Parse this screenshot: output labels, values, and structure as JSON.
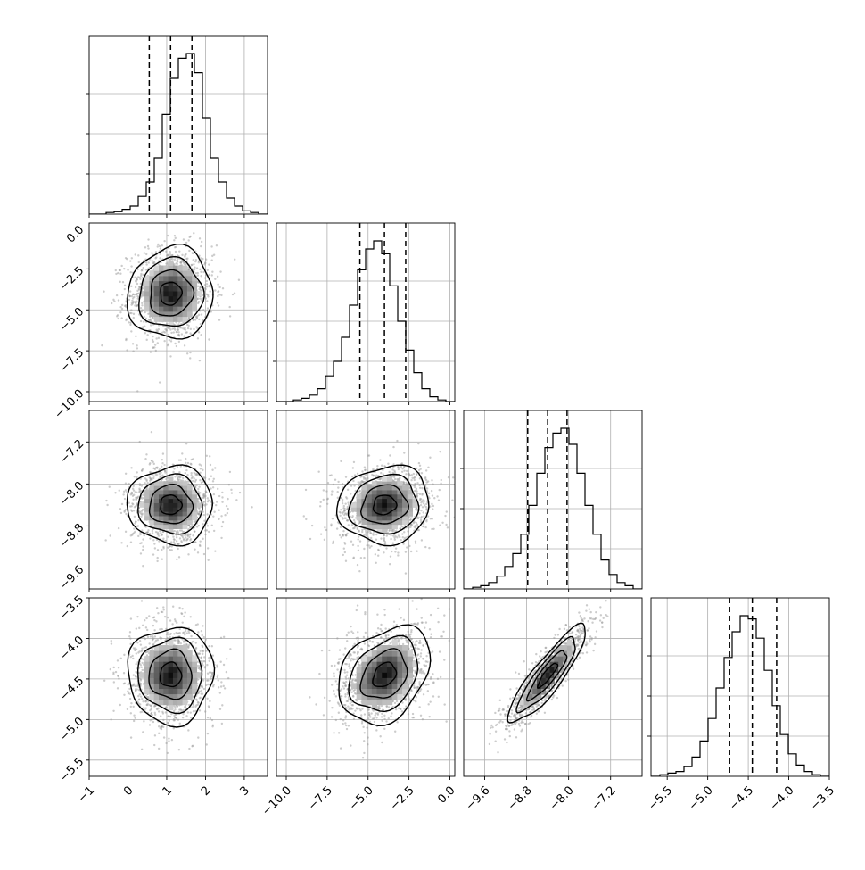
{
  "chart_data": {
    "type": "corner",
    "grid": true,
    "parameters": [
      {
        "range": [
          -1,
          3.6
        ],
        "ticks": [
          -1,
          0,
          1,
          2,
          3
        ],
        "tick_labels": [
          "−1",
          "0",
          "1",
          "2",
          "3"
        ],
        "quantiles": [
          0.55,
          1.1,
          1.65
        ],
        "mean": 1.1,
        "sd": 0.55,
        "hist_bins": [
          0.0,
          0.01,
          0.015,
          0.03,
          0.05,
          0.11,
          0.2,
          0.35,
          0.62,
          0.85,
          0.97,
          1.0,
          0.88,
          0.6,
          0.35,
          0.2,
          0.1,
          0.05,
          0.02,
          0.01
        ]
      },
      {
        "range": [
          -10.6,
          0.3
        ],
        "ticks": [
          -10,
          -7.5,
          -5,
          -2.5,
          0
        ],
        "tick_labels": [
          "−10.0",
          "−7.5",
          "−5.0",
          "−2.5",
          "0.0"
        ],
        "quantiles": [
          -5.5,
          -4.0,
          -2.7
        ],
        "mean": -4.0,
        "sd": 1.4,
        "hist_bins": [
          0.0,
          0.01,
          0.02,
          0.04,
          0.08,
          0.16,
          0.25,
          0.4,
          0.6,
          0.82,
          0.95,
          1.0,
          0.92,
          0.72,
          0.5,
          0.32,
          0.18,
          0.08,
          0.03,
          0.01
        ]
      },
      {
        "range": [
          -10.0,
          -6.6
        ],
        "ticks": [
          -9.6,
          -8.8,
          -8.0,
          -7.2
        ],
        "tick_labels": [
          "−9.6",
          "−8.8",
          "−8.0",
          "−7.2"
        ],
        "quantiles": [
          -8.78,
          -8.4,
          -8.03
        ],
        "mean": -8.4,
        "sd": 0.37,
        "hist_bins": [
          0.01,
          0.02,
          0.04,
          0.08,
          0.14,
          0.22,
          0.34,
          0.52,
          0.72,
          0.88,
          0.97,
          1.0,
          0.9,
          0.72,
          0.52,
          0.34,
          0.18,
          0.09,
          0.04,
          0.02
        ]
      },
      {
        "range": [
          -5.7,
          -3.5
        ],
        "ticks": [
          -5.5,
          -5.0,
          -4.5,
          -4.0,
          -3.5
        ],
        "tick_labels": [
          "−5.5",
          "−5.0",
          "−4.5",
          "−4.0",
          "−3.5"
        ],
        "quantiles": [
          -4.73,
          -4.45,
          -4.15
        ],
        "mean": -4.45,
        "sd": 0.3,
        "hist_bins": [
          0.01,
          0.02,
          0.03,
          0.06,
          0.12,
          0.22,
          0.36,
          0.55,
          0.74,
          0.9,
          1.0,
          0.98,
          0.86,
          0.66,
          0.44,
          0.26,
          0.14,
          0.07,
          0.03,
          0.01
        ]
      }
    ],
    "pair_plots": [
      {
        "row": 1,
        "col": 0,
        "y_ticks": [
          0,
          -2.5,
          -5,
          -7.5,
          -10
        ],
        "y_tick_labels": [
          "0.0",
          "−2.5",
          "−5.0",
          "−7.5",
          "−10.0"
        ],
        "correlation": 0.05
      },
      {
        "row": 2,
        "col": 0,
        "y_ticks": [
          -7.2,
          -8.0,
          -8.8,
          -9.6
        ],
        "y_tick_labels": [
          "−7.2",
          "−8.0",
          "−8.8",
          "−9.6"
        ],
        "correlation": 0.0
      },
      {
        "row": 2,
        "col": 1,
        "correlation": 0.08
      },
      {
        "row": 3,
        "col": 0,
        "y_ticks": [
          -3.5,
          -4.0,
          -4.5,
          -5.0,
          -5.5
        ],
        "y_tick_labels": [
          "−3.5",
          "−4.0",
          "−4.5",
          "−5.0",
          "−5.5"
        ],
        "correlation": 0.0
      },
      {
        "row": 3,
        "col": 1,
        "correlation": 0.3
      },
      {
        "row": 3,
        "col": 2,
        "correlation": 0.88
      }
    ],
    "contour_levels_sigma": [
      0.5,
      1.0,
      1.5,
      2.0
    ],
    "colors": {
      "line": "#000000",
      "grid": "#b0b0b0",
      "points": "#9a9a9a"
    }
  }
}
